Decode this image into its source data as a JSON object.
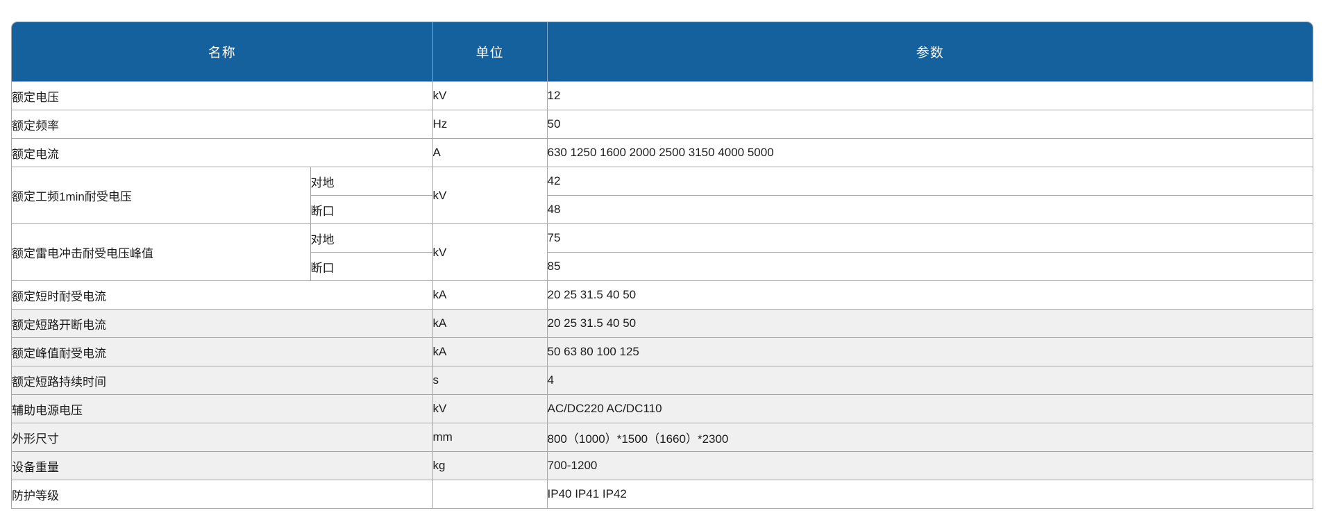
{
  "table": {
    "headers": {
      "name": "名称",
      "unit": "单位",
      "param": "参数"
    },
    "rows": [
      {
        "name": "额定电压",
        "unit": "kV",
        "param": "12",
        "shaded": false
      },
      {
        "name": "额定频率",
        "unit": "Hz",
        "param": "50",
        "shaded": false
      },
      {
        "name": "额定电流",
        "unit": "A",
        "param": "630 1250 1600 2000 2500 3150 4000 5000",
        "shaded": false
      },
      {
        "name": "额定工频1min耐受电压",
        "unit": "kV",
        "shaded": false,
        "subrows": [
          {
            "label": "对地",
            "param": "42"
          },
          {
            "label": "断口",
            "param": "48"
          }
        ]
      },
      {
        "name": "额定雷电冲击耐受电压峰值",
        "unit": "kV",
        "shaded": false,
        "subrows": [
          {
            "label": "对地",
            "param": "75"
          },
          {
            "label": "断口",
            "param": "85"
          }
        ]
      },
      {
        "name": "额定短时耐受电流",
        "unit": "kA",
        "param": "20 25 31.5 40 50",
        "shaded": false
      },
      {
        "name": "额定短路开断电流",
        "unit": "kA",
        "param": "20 25 31.5 40 50",
        "shaded": true
      },
      {
        "name": "额定峰值耐受电流",
        "unit": "kA",
        "param": "50 63 80 100 125",
        "shaded": true
      },
      {
        "name": "额定短路持续时间",
        "unit": "s",
        "param": "4",
        "shaded": true
      },
      {
        "name": "辅助电源电压",
        "unit": "kV",
        "param": "AC/DC220 AC/DC110",
        "shaded": true
      },
      {
        "name": "外形尺寸",
        "unit": "mm",
        "param": "800（1000）*1500（1660）*2300",
        "shaded": true
      },
      {
        "name": "设备重量",
        "unit": "kg",
        "param": "700-1200",
        "shaded": true
      },
      {
        "name": "防护等级",
        "unit": "",
        "param": "IP40 IP41 IP42",
        "shaded": false
      }
    ],
    "colors": {
      "header_bg": "#15619E",
      "header_text": "#FFFFFF",
      "shaded_row_bg": "#F0F0F0",
      "border": "#A6A6A6",
      "body_text": "#1B1B1B"
    }
  }
}
